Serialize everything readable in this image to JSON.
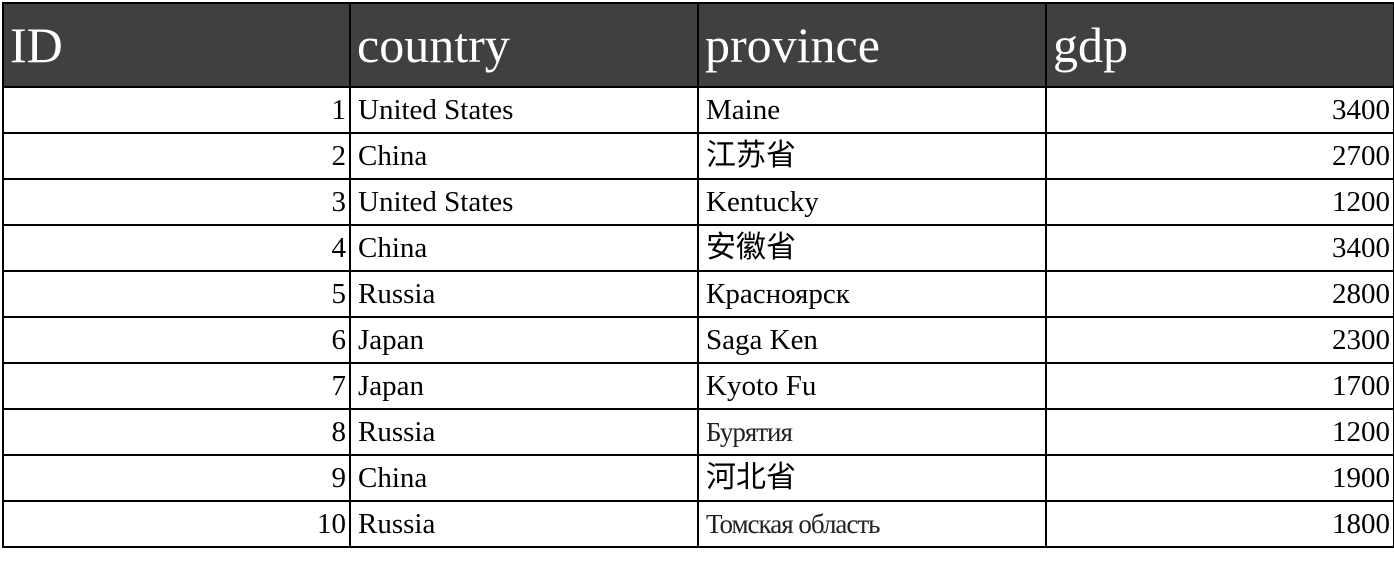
{
  "table": {
    "headers": [
      "ID",
      "country",
      "province",
      "gdp"
    ],
    "rows": [
      {
        "id": "1",
        "country": "United States",
        "province": "Maine",
        "gdp": "3400"
      },
      {
        "id": "2",
        "country": "China",
        "province": "江苏省",
        "gdp": "2700"
      },
      {
        "id": "3",
        "country": "United States",
        "province": "Kentucky",
        "gdp": "1200"
      },
      {
        "id": "4",
        "country": "China",
        "province": "安徽省",
        "gdp": "3400"
      },
      {
        "id": "5",
        "country": "Russia",
        "province": "Красноярск",
        "gdp": "2800"
      },
      {
        "id": "6",
        "country": "Japan",
        "province": "Saga Ken",
        "gdp": "2300"
      },
      {
        "id": "7",
        "country": "Japan",
        "province": "Kyoto Fu",
        "gdp": "1700"
      },
      {
        "id": "8",
        "country": "Russia",
        "province": "Бурятия",
        "gdp": "1200"
      },
      {
        "id": "9",
        "country": "China",
        "province": "河北省",
        "gdp": "1900"
      },
      {
        "id": "10",
        "country": "Russia",
        "province": "Томская область",
        "gdp": "1800"
      }
    ]
  },
  "colors": {
    "header_background": "#404040",
    "header_text": "#ffffff",
    "border": "#000000"
  }
}
